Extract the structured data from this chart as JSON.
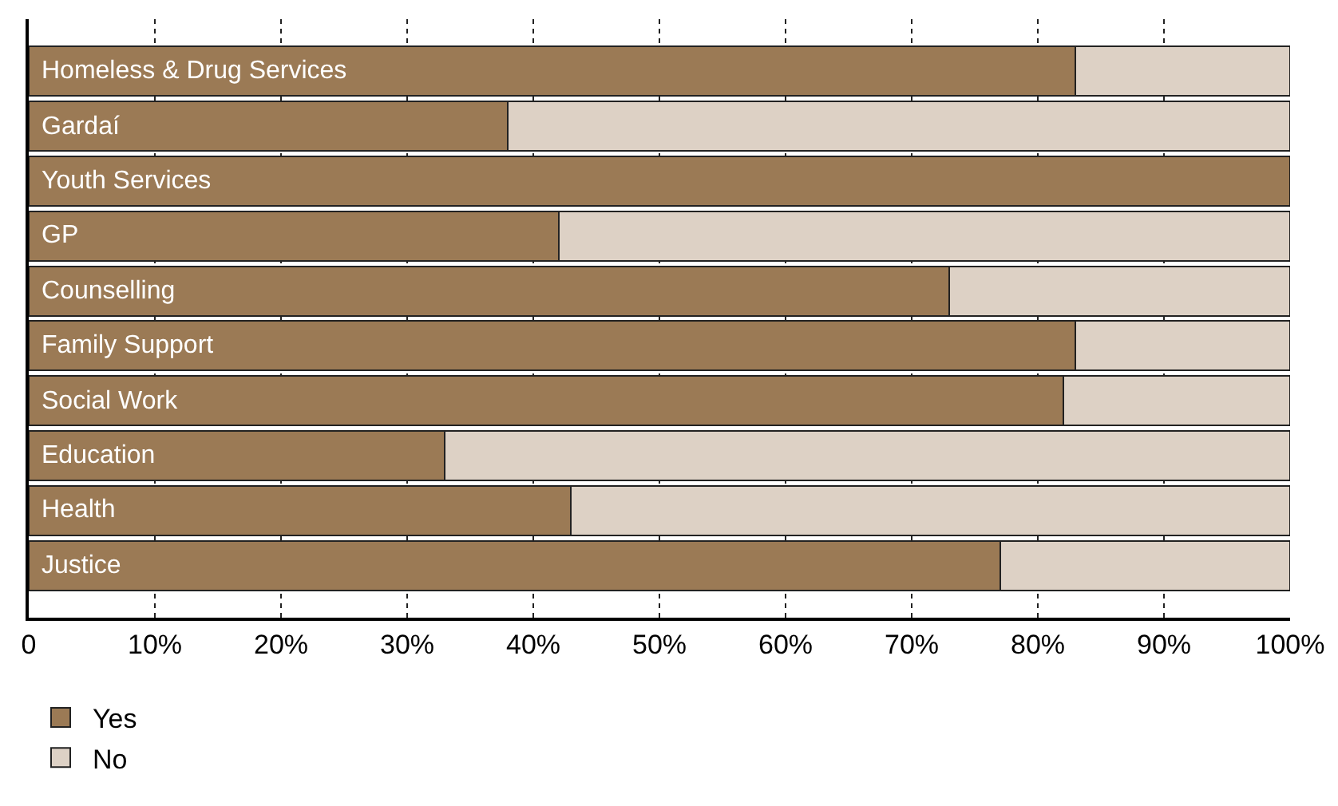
{
  "chart_data": {
    "type": "bar",
    "orientation": "horizontal",
    "stacked": true,
    "categories": [
      "Homeless & Drug Services",
      "Gardaí",
      "Youth Services",
      "GP",
      "Counselling",
      "Family Support",
      "Social Work",
      "Education",
      "Health",
      "Justice"
    ],
    "series": [
      {
        "name": "Yes",
        "color": "#9b7a55",
        "values": [
          83,
          38,
          100,
          42,
          73,
          83,
          82,
          33,
          43,
          77
        ]
      },
      {
        "name": "No",
        "color": "#ddd1c5",
        "values": [
          17,
          62,
          0,
          58,
          27,
          17,
          18,
          67,
          57,
          23
        ]
      }
    ],
    "xlim": [
      0,
      100
    ],
    "xticks": [
      0,
      {
        "value": 10,
        "label": "10%"
      },
      {
        "value": 20,
        "label": "20%"
      },
      {
        "value": 30,
        "label": "30%"
      },
      {
        "value": 40,
        "label": "40%"
      },
      {
        "value": 50,
        "label": "50%"
      },
      {
        "value": 60,
        "label": "60%"
      },
      {
        "value": 70,
        "label": "70%"
      },
      {
        "value": 80,
        "label": "80%"
      },
      {
        "value": 90,
        "label": "90%"
      },
      {
        "value": 100,
        "label": "100%"
      }
    ],
    "grid": "x",
    "legend": "bottom left"
  }
}
